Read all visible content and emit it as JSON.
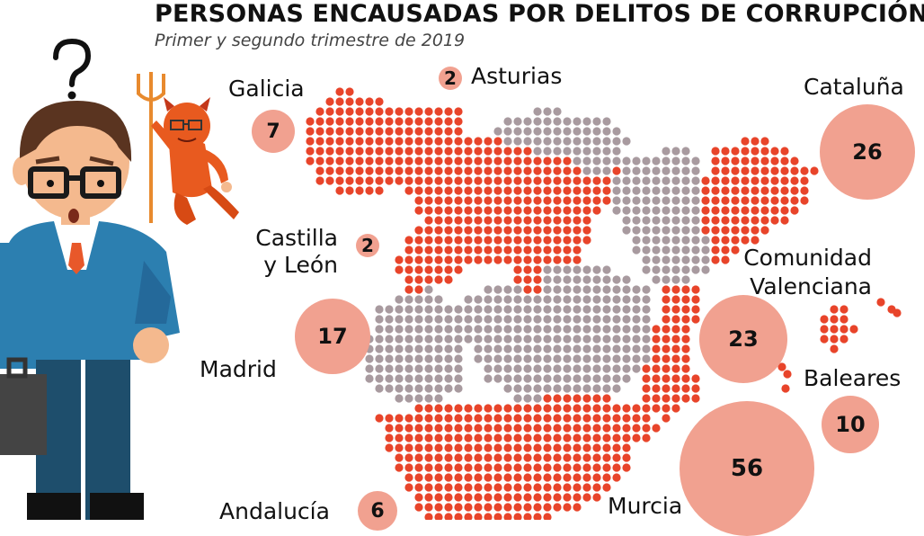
{
  "title": "PERSONAS ENCAUSADAS POR DELITOS DE CORRUPCIÓN",
  "subtitle": "Primer y segundo trimestre de 2019",
  "colors": {
    "dot_highlight": "#e8442a",
    "dot_other": "#a89a9f",
    "bubble": "#f1a190"
  },
  "icons": [
    "confused-businessman-icon",
    "devil-icon"
  ],
  "chart_data": {
    "type": "bubble-map",
    "title": "PERSONAS ENCAUSADAS POR DELITOS DE CORRUPCIÓN",
    "subtitle": "Primer y segundo trimestre de 2019",
    "regions": [
      {
        "name": "Galicia",
        "value": 7
      },
      {
        "name": "Asturias",
        "value": 2
      },
      {
        "name": "Cataluña",
        "value": 26
      },
      {
        "name": "Castilla y León",
        "value": 2
      },
      {
        "name": "Comunidad Valenciana",
        "value": 23
      },
      {
        "name": "Madrid",
        "value": 17
      },
      {
        "name": "Baleares",
        "value": 10
      },
      {
        "name": "Andalucía",
        "value": 6
      },
      {
        "name": "Murcia",
        "value": 56
      }
    ]
  },
  "labels": {
    "galicia": "Galicia",
    "asturias": "Asturias",
    "cataluna": "Cataluña",
    "castilla_1": "Castilla",
    "castilla_2": "y León",
    "comunidad_1": "Comunidad",
    "comunidad_2": "Valenciana",
    "madrid": "Madrid",
    "baleares": "Baleares",
    "andalucia": "Andalucía",
    "murcia": "Murcia"
  },
  "values": {
    "galicia": "7",
    "asturias": "2",
    "cataluna": "26",
    "castilla": "2",
    "comunidad": "23",
    "madrid": "17",
    "baleares": "10",
    "andalucia": "6",
    "murcia": "56"
  }
}
